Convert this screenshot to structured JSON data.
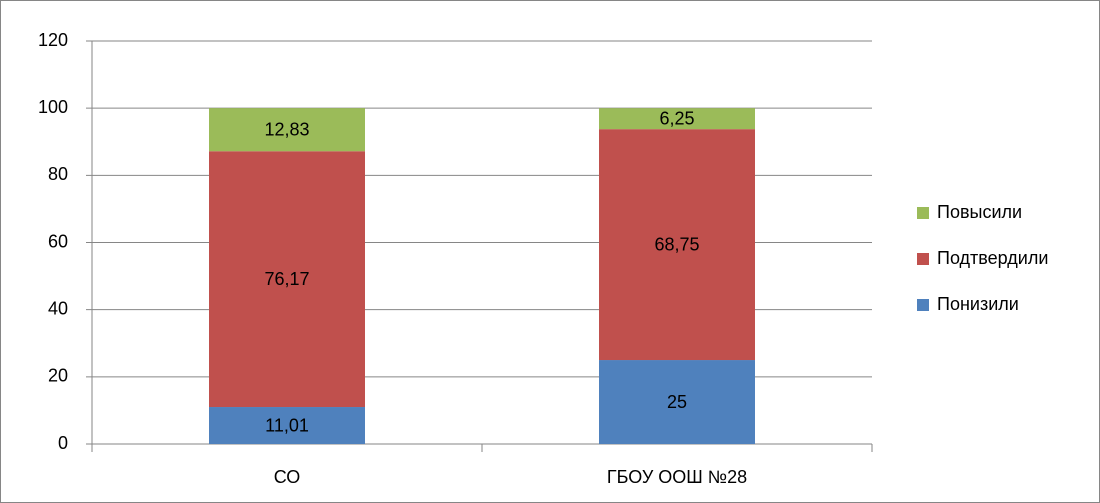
{
  "chart_data": {
    "type": "stacked_bar",
    "categories": [
      "СО",
      "ГБОУ ООШ №28"
    ],
    "series": [
      {
        "name": "Понизили",
        "color": "#4f81bd",
        "values": [
          11.01,
          25
        ],
        "value_labels": [
          "11,01",
          "25"
        ]
      },
      {
        "name": "Подтвердили",
        "color": "#c0504d",
        "values": [
          76.17,
          68.75
        ],
        "value_labels": [
          "76,17",
          "68,75"
        ]
      },
      {
        "name": "Повысили",
        "color": "#9bbb59",
        "values": [
          12.83,
          6.25
        ],
        "value_labels": [
          "12,83",
          "6,25"
        ]
      }
    ],
    "ylim": [
      0,
      120
    ],
    "yticks": [
      0,
      20,
      40,
      60,
      80,
      100,
      120
    ],
    "grid": true,
    "legend": "right"
  }
}
